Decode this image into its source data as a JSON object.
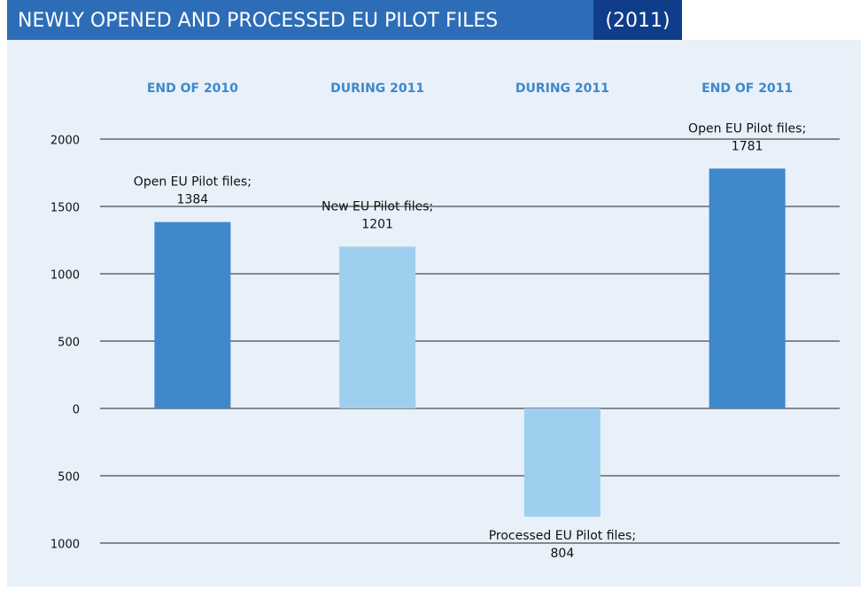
{
  "chart_data": {
    "type": "bar",
    "title": "NEWLY OPENED AND PROCESSED EU PILOT FILES",
    "subtitle": "(2011)",
    "column_headers": [
      "END OF 2010",
      "DURING 2011",
      "DURING 2011",
      "END OF 2011"
    ],
    "categories": [
      "Open EU Pilot files;",
      "New EU Pilot files;",
      "Processed EU Pilot files;",
      "Open EU Pilot files;"
    ],
    "values": [
      1384,
      1201,
      -804,
      1781
    ],
    "value_labels": [
      "1384",
      "1201",
      "804",
      "1781"
    ],
    "colors": [
      "#3f88c9",
      "#9fcfef",
      "#9fcfef",
      "#3f88c9"
    ],
    "ylim": [
      -1000,
      2000
    ],
    "yticks": [
      {
        "value": -1000,
        "label": "1000"
      },
      {
        "value": -500,
        "label": "500"
      },
      0,
      500,
      1000,
      1500,
      2000
    ],
    "grid": true
  }
}
